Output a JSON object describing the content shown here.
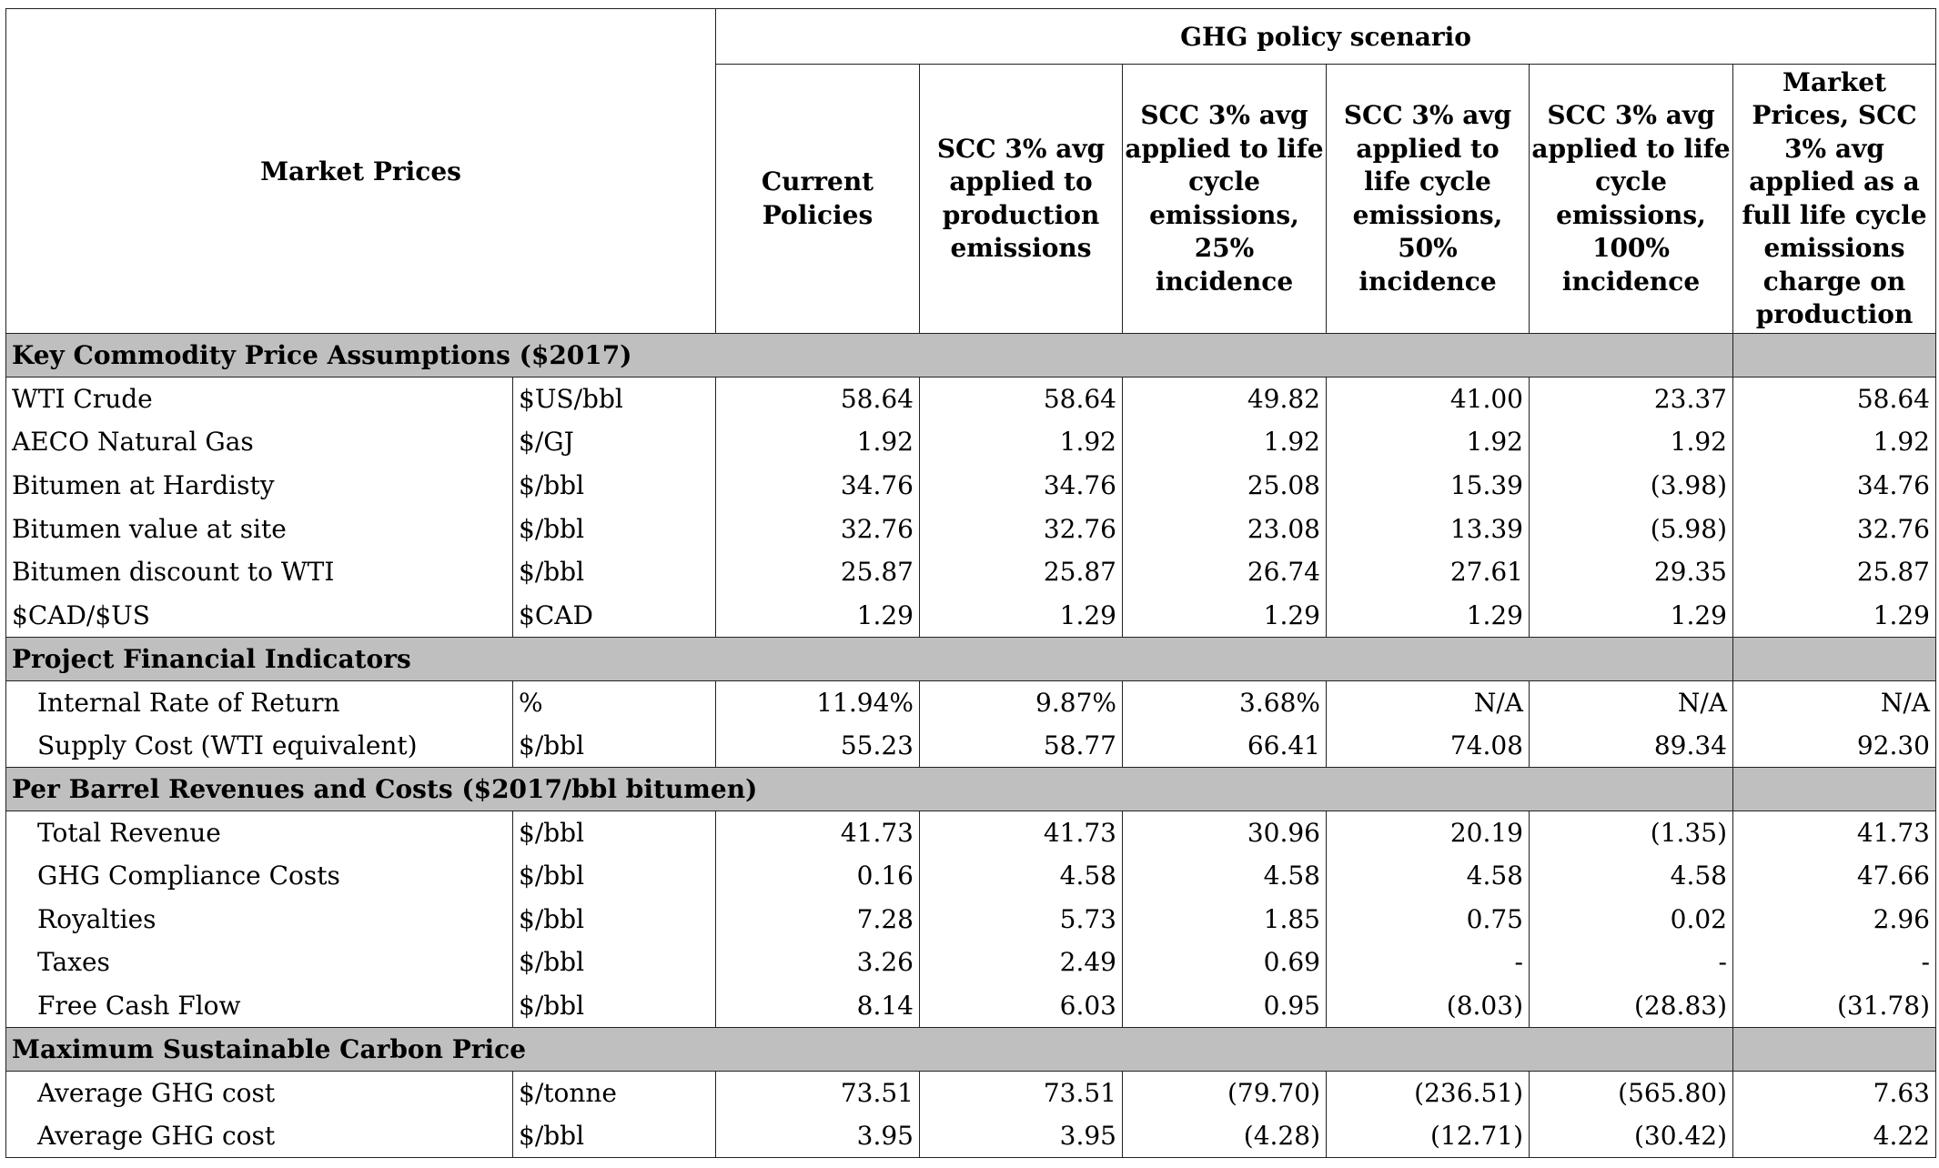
{
  "header": {
    "title": "Market Prices",
    "group_label": "GHG policy scenario",
    "columns": [
      "Current Policies",
      "SCC 3% avg applied to production emissions",
      "SCC 3% avg applied to life cycle emissions, 25% incidence",
      "SCC 3% avg applied to life cycle emissions, 50% incidence",
      "SCC 3% avg applied to life cycle emissions, 100% incidence",
      "Market Prices, SCC 3% avg applied as a full life cycle emissions charge on production"
    ]
  },
  "sections": [
    {
      "title": "Key Commodity Price Assumptions ($2017)",
      "rows": [
        {
          "label": "WTI Crude",
          "unit": "$US/bbl",
          "values": [
            "58.64",
            "58.64",
            "49.82",
            "41.00",
            "23.37",
            "58.64"
          ]
        },
        {
          "label": "AECO Natural Gas",
          "unit": "$/GJ",
          "values": [
            "1.92",
            "1.92",
            "1.92",
            "1.92",
            "1.92",
            "1.92"
          ]
        },
        {
          "label": "Bitumen at Hardisty",
          "unit": "$/bbl",
          "values": [
            "34.76",
            "34.76",
            "25.08",
            "15.39",
            "(3.98)",
            "34.76"
          ]
        },
        {
          "label": "Bitumen value at site",
          "unit": "$/bbl",
          "values": [
            "32.76",
            "32.76",
            "23.08",
            "13.39",
            "(5.98)",
            "32.76"
          ]
        },
        {
          "label": "Bitumen discount to WTI",
          "unit": "$/bbl",
          "values": [
            "25.87",
            "25.87",
            "26.74",
            "27.61",
            "29.35",
            "25.87"
          ]
        },
        {
          "label": "$CAD/$US",
          "unit": "$CAD",
          "values": [
            "1.29",
            "1.29",
            "1.29",
            "1.29",
            "1.29",
            "1.29"
          ]
        }
      ]
    },
    {
      "title": "Project Financial Indicators",
      "rows": [
        {
          "label": "Internal Rate of Return",
          "unit": "%",
          "values": [
            "11.94%",
            "9.87%",
            "3.68%",
            "N/A",
            "N/A",
            "N/A"
          ]
        },
        {
          "label": "Supply Cost (WTI equivalent)",
          "unit": "$/bbl",
          "values": [
            "55.23",
            "58.77",
            "66.41",
            "74.08",
            "89.34",
            "92.30"
          ]
        }
      ]
    },
    {
      "title": "Per Barrel Revenues and Costs ($2017/bbl bitumen)",
      "rows": [
        {
          "label": "Total Revenue",
          "unit": "$/bbl",
          "values": [
            "41.73",
            "41.73",
            "30.96",
            "20.19",
            "(1.35)",
            "41.73"
          ]
        },
        {
          "label": "GHG Compliance Costs",
          "unit": "$/bbl",
          "values": [
            "0.16",
            "4.58",
            "4.58",
            "4.58",
            "4.58",
            "47.66"
          ]
        },
        {
          "label": "Royalties",
          "unit": "$/bbl",
          "values": [
            "7.28",
            "5.73",
            "1.85",
            "0.75",
            "0.02",
            "2.96"
          ]
        },
        {
          "label": "Taxes",
          "unit": "$/bbl",
          "values": [
            "3.26",
            "2.49",
            "0.69",
            "-",
            "-",
            "-"
          ]
        },
        {
          "label": "Free Cash Flow",
          "unit": "$/bbl",
          "values": [
            "8.14",
            "6.03",
            "0.95",
            "(8.03)",
            "(28.83)",
            "(31.78)"
          ]
        }
      ]
    },
    {
      "title": "Maximum Sustainable Carbon Price",
      "rows": [
        {
          "label": "Average GHG cost",
          "unit": "$/tonne",
          "values": [
            "73.51",
            "73.51",
            "(79.70)",
            "(236.51)",
            "(565.80)",
            "7.63"
          ]
        },
        {
          "label": "Average GHG cost",
          "unit": "$/bbl",
          "values": [
            "3.95",
            "3.95",
            "(4.28)",
            "(12.71)",
            "(30.42)",
            "4.22"
          ]
        }
      ]
    }
  ]
}
